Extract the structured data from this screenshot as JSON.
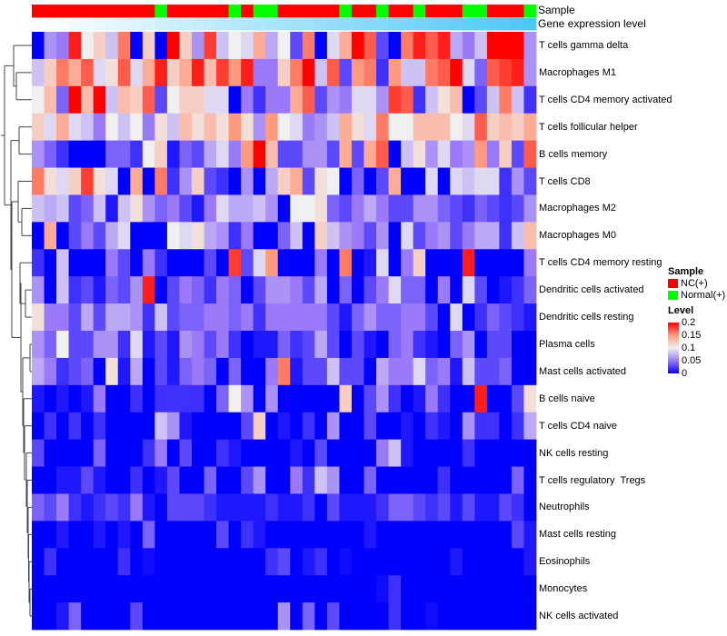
{
  "chart_data": {
    "type": "heatmap",
    "title": "",
    "annotations": {
      "sample_label": "Sample",
      "gene_label": "Gene expression level",
      "sample": [
        "NC(+)",
        "NC(+)",
        "NC(+)",
        "NC(+)",
        "NC(+)",
        "NC(+)",
        "NC(+)",
        "NC(+)",
        "NC(+)",
        "NC(+)",
        "Normal(+)",
        "NC(+)",
        "NC(+)",
        "NC(+)",
        "NC(+)",
        "NC(+)",
        "Normal(+)",
        "NC(+)",
        "Normal(+)",
        "Normal(+)",
        "NC(+)",
        "NC(+)",
        "NC(+)",
        "NC(+)",
        "NC(+)",
        "Normal(+)",
        "NC(+)",
        "NC(+)",
        "Normal(+)",
        "NC(+)",
        "NC(+)",
        "Normal(+)",
        "NC(+)",
        "NC(+)",
        "NC(+)",
        "Normal(+)",
        "Normal(+)",
        "NC(+)",
        "NC(+)",
        "NC(+)",
        "Normal(+)"
      ],
      "gene_expression_colors": {
        "low": "#ffffff",
        "high": "#4cc8f6"
      },
      "gene_expression_order": "increasing left to right"
    },
    "rows": [
      "T cells gamma delta",
      "Macrophages M1",
      "T cells CD4 memory activated",
      "T cells follicular helper",
      "B cells memory",
      "T cells CD8",
      "Macrophages M2",
      "Macrophages M0",
      "T cells CD4 memory resting",
      "Dendritic cells activated",
      "Dendritic cells resting",
      "Plasma cells",
      "Mast cells activated",
      "B cells naive",
      "T cells CD4 naive",
      "NK cells resting",
      "T cells regulatory  Tregs",
      "Neutrophils",
      "Mast cells resting",
      "Eosinophils",
      "Monocytes",
      "NK cells activated"
    ],
    "values": [
      [
        0,
        0.06,
        0.05,
        0.19,
        0.1,
        0.12,
        0.08,
        0.16,
        0,
        0.12,
        0,
        0.2,
        0.12,
        0.06,
        0.18,
        0.08,
        0.1,
        0.09,
        0.14,
        0.07,
        0.1,
        0.03,
        0.16,
        0,
        0.09,
        0.14,
        0.2,
        0.17,
        0.03,
        0,
        0.16,
        0.19,
        0.17,
        0.19,
        0.07,
        0.05,
        0.08,
        0.2,
        0.2,
        0.2,
        0.06
      ],
      [
        0.08,
        0.12,
        0.16,
        0.14,
        0.17,
        0.09,
        0.11,
        0.17,
        0.09,
        0.14,
        0.19,
        0.12,
        0.14,
        0.19,
        0.13,
        0.18,
        0.15,
        0.19,
        0.05,
        0.05,
        0.12,
        0.16,
        0.2,
        0.08,
        0.17,
        0.03,
        0.15,
        0.16,
        0.02,
        0.15,
        0.08,
        0.08,
        0.16,
        0.17,
        0.2,
        0.09,
        0.04,
        0.17,
        0.18,
        0.19,
        0.06
      ],
      [
        0.1,
        0.13,
        0.04,
        0.2,
        0.13,
        0.2,
        0.08,
        0.13,
        0.12,
        0.17,
        0.03,
        0.1,
        0.12,
        0.12,
        0.09,
        0.09,
        0,
        0.05,
        0.02,
        0.05,
        0.05,
        0.14,
        0.17,
        0.03,
        0.06,
        0.05,
        0.09,
        0.09,
        0.06,
        0.18,
        0.17,
        0.02,
        0.08,
        0.11,
        0.13,
        0,
        0.03,
        0.08,
        0.16,
        0.08,
        0.02
      ],
      [
        0.12,
        0.09,
        0.14,
        0.09,
        0.08,
        0.05,
        0.1,
        0.08,
        0.1,
        0.05,
        0.11,
        0.08,
        0.13,
        0.11,
        0.13,
        0.11,
        0.15,
        0.11,
        0.06,
        0.15,
        0.1,
        0.09,
        0.05,
        0.06,
        0.08,
        0.14,
        0.11,
        0.09,
        0.16,
        0.1,
        0.1,
        0.13,
        0.13,
        0.13,
        0.1,
        0.09,
        0.17,
        0.12,
        0.13,
        0.12,
        0.14
      ],
      [
        0.06,
        0.04,
        0.02,
        0,
        0,
        0,
        0.04,
        0.04,
        0.02,
        0.1,
        0.12,
        0.01,
        0.04,
        0.03,
        0.07,
        0.09,
        0.05,
        0.15,
        0.2,
        0.13,
        0.03,
        0.03,
        0.06,
        0.06,
        0.03,
        0.14,
        0.03,
        0.14,
        0.17,
        0,
        0.08,
        0.11,
        0.06,
        0.09,
        0.05,
        0.06,
        0.15,
        0.05,
        0.12,
        0.03,
        0.17
      ],
      [
        0.16,
        0.11,
        0.09,
        0.12,
        0.18,
        0.11,
        0.09,
        0,
        0.14,
        0,
        0.16,
        0.02,
        0.06,
        0.12,
        0.03,
        0.02,
        0,
        0.06,
        0,
        0.07,
        0.12,
        0.14,
        0.03,
        0.11,
        0.1,
        0,
        0.04,
        0,
        0.03,
        0.14,
        0,
        0,
        0.09,
        0,
        0.09,
        0.08,
        0.09,
        0.09,
        0.02,
        0.06,
        0.03
      ],
      [
        0.08,
        0.07,
        0.08,
        0.03,
        0.04,
        0.08,
        0.01,
        0.08,
        0.11,
        0.06,
        0.04,
        0.05,
        0.03,
        0.01,
        0.05,
        0.09,
        0.07,
        0.07,
        0.08,
        0.06,
        0,
        0.1,
        0.1,
        0.11,
        0.04,
        0.03,
        0.05,
        0.07,
        0.05,
        0.03,
        0.03,
        0.06,
        0.06,
        0.04,
        0.03,
        0.02,
        0.04,
        0.03,
        0.02,
        0.03,
        0.06
      ],
      [
        0,
        0.14,
        0,
        0.03,
        0.05,
        0.03,
        0.07,
        0.09,
        0,
        0,
        0,
        0.1,
        0.09,
        0.11,
        0.07,
        0.06,
        0.02,
        0.05,
        0,
        0,
        0.04,
        0.08,
        0,
        0.12,
        0.08,
        0.06,
        0.05,
        0.03,
        0.06,
        0,
        0.09,
        0.03,
        0.05,
        0.06,
        0.03,
        0.05,
        0.07,
        0.07,
        0.02,
        0.08,
        0.13
      ],
      [
        0.02,
        0,
        0.08,
        0,
        0,
        0,
        0.05,
        0.03,
        0,
        0.05,
        0.02,
        0,
        0,
        0,
        0.03,
        0,
        0.18,
        0.03,
        0.09,
        0.15,
        0,
        0,
        0,
        0.05,
        0,
        0.16,
        0,
        0.01,
        0.09,
        0,
        0.05,
        0.12,
        0,
        0,
        0,
        0.19,
        0,
        0,
        0,
        0,
        0.05
      ],
      [
        0.06,
        0,
        0.08,
        0.02,
        0.03,
        0.01,
        0.04,
        0.03,
        0.06,
        0.19,
        0,
        0.03,
        0.05,
        0.04,
        0.02,
        0.05,
        0.04,
        0,
        0.03,
        0.06,
        0.06,
        0.05,
        0.03,
        0.07,
        0,
        0.04,
        0,
        0.03,
        0.05,
        0.09,
        0.04,
        0.04,
        0,
        0.05,
        0,
        0.09,
        0.03,
        0,
        0.01,
        0.02,
        0.04
      ],
      [
        0.11,
        0.05,
        0.05,
        0.03,
        0.07,
        0.03,
        0.07,
        0.07,
        0.06,
        0.02,
        0.08,
        0.03,
        0.04,
        0.04,
        0.05,
        0.05,
        0.04,
        0.05,
        0.02,
        0.05,
        0.05,
        0.05,
        0.05,
        0.05,
        0.03,
        0.01,
        0.04,
        0.06,
        0.04,
        0.04,
        0.05,
        0.05,
        0.03,
        0,
        0.09,
        0,
        0.02,
        0.04,
        0.03,
        0.02,
        0.01
      ],
      [
        0.06,
        0.04,
        0.1,
        0.03,
        0.03,
        0.06,
        0.06,
        0.02,
        0.09,
        0.01,
        0.03,
        0.01,
        0.06,
        0.05,
        0.03,
        0.05,
        0.02,
        0,
        0.01,
        0.01,
        0.04,
        0.02,
        0.03,
        0.07,
        0.03,
        0,
        0.03,
        0.01,
        0,
        0.04,
        0.05,
        0.02,
        0.01,
        0,
        0.04,
        0.06,
        0,
        0.03,
        0.03,
        0,
        0
      ],
      [
        0.07,
        0.05,
        0.02,
        0.03,
        0.04,
        0,
        0.11,
        0.01,
        0.07,
        0,
        0.03,
        0.01,
        0.04,
        0.05,
        0.04,
        0,
        0.04,
        0,
        0,
        0.05,
        0.16,
        0.01,
        0.03,
        0.03,
        0.08,
        0.03,
        0.03,
        0,
        0.07,
        0.05,
        0.05,
        0.09,
        0.04,
        0.05,
        0.01,
        0.08,
        0.03,
        0.03,
        0.04,
        0,
        0
      ],
      [
        0.01,
        0,
        0.01,
        0,
        0.01,
        0.05,
        0,
        0,
        0.02,
        0,
        0.02,
        0.02,
        0.02,
        0.02,
        0,
        0.04,
        0.1,
        0.06,
        0,
        0.06,
        0,
        0,
        0,
        0,
        0,
        0.12,
        0,
        0.03,
        0.06,
        0.02,
        0,
        0.01,
        0.05,
        0.02,
        0,
        0,
        0.19,
        0,
        0,
        0.03,
        0.11
      ],
      [
        0,
        0.02,
        0,
        0.02,
        0,
        0.02,
        0,
        0,
        0,
        0,
        0.08,
        0.06,
        0.01,
        0,
        0,
        0,
        0,
        0.03,
        0.12,
        0,
        0.01,
        0,
        0.02,
        0,
        0.06,
        0,
        0,
        0.03,
        0,
        0,
        0.01,
        0,
        0.02,
        0.01,
        0,
        0.06,
        0.02,
        0.02,
        0,
        0.02,
        0.07
      ],
      [
        0.03,
        0,
        0,
        0,
        0,
        0.04,
        0,
        0,
        0,
        0.02,
        0.05,
        0,
        0.03,
        0,
        0,
        0.02,
        0.01,
        0,
        0,
        0,
        0,
        0.01,
        0,
        0.03,
        0,
        0,
        0,
        0,
        0.05,
        0.08,
        0.01,
        0,
        0,
        0,
        0,
        0.02,
        0,
        0,
        0,
        0,
        0
      ],
      [
        0,
        0,
        0.01,
        0.01,
        0.03,
        0.01,
        0,
        0,
        0.02,
        0,
        0.01,
        0.03,
        0,
        0,
        0.04,
        0,
        0,
        0.03,
        0.06,
        0,
        0,
        0.05,
        0.02,
        0.08,
        0.06,
        0,
        0,
        0.04,
        0,
        0,
        0,
        0,
        0,
        0.02,
        0,
        0,
        0,
        0,
        0,
        0.04,
        0
      ],
      [
        0.04,
        0.03,
        0.05,
        0.02,
        0.01,
        0.02,
        0.03,
        0.02,
        0.05,
        0.01,
        0,
        0.03,
        0.03,
        0.03,
        0.02,
        0.01,
        0.01,
        0.01,
        0.01,
        0.02,
        0.01,
        0.01,
        0.02,
        0,
        0.03,
        0.01,
        0.01,
        0.01,
        0.02,
        0.04,
        0.04,
        0.03,
        0.02,
        0.03,
        0.01,
        0.03,
        0.01,
        0.01,
        0.03,
        0.02,
        0
      ],
      [
        0,
        0,
        0.01,
        0,
        0,
        0.01,
        0,
        0.01,
        0,
        0.04,
        0,
        0,
        0,
        0,
        0,
        0.03,
        0,
        0.02,
        0.01,
        0,
        0,
        0,
        0,
        0,
        0,
        0,
        0,
        0.01,
        0,
        0,
        0,
        0,
        0,
        0,
        0,
        0,
        0,
        0,
        0,
        0.03,
        0.01
      ],
      [
        0,
        0.02,
        0,
        0,
        0,
        0,
        0,
        0.02,
        0,
        0.005,
        0,
        0,
        0,
        0,
        0,
        0,
        0,
        0,
        0,
        0.02,
        0.03,
        0,
        0.01,
        0.02,
        0,
        0.005,
        0,
        0,
        0,
        0,
        0,
        0,
        0,
        0,
        0.01,
        0,
        0,
        0,
        0,
        0,
        0.01
      ],
      [
        0,
        0,
        0,
        0,
        0,
        0,
        0,
        0,
        0,
        0,
        0,
        0,
        0,
        0,
        0,
        0,
        0,
        0,
        0,
        0,
        0,
        0,
        0,
        0,
        0,
        0,
        0,
        0,
        0.005,
        0.02,
        0,
        0,
        0,
        0,
        0,
        0,
        0,
        0,
        0,
        0,
        0
      ],
      [
        0,
        0,
        0.01,
        0.04,
        0,
        0,
        0,
        0,
        0.03,
        0,
        0,
        0,
        0,
        0,
        0,
        0,
        0,
        0,
        0,
        0,
        0.06,
        0,
        0.04,
        0,
        0.03,
        0,
        0,
        0,
        0,
        0.02,
        0,
        0,
        0.005,
        0,
        0,
        0,
        0,
        0,
        0,
        0,
        0
      ]
    ],
    "color_scale": {
      "min": 0,
      "mid": 0.1,
      "max": 0.2,
      "low": "#0000ff",
      "midColor": "#f0f0f0",
      "high": "#ff0000"
    },
    "legend": {
      "position": "right",
      "sample_title": "Sample",
      "sample_entries": [
        {
          "label": "NC(+)",
          "color": "#ff0000"
        },
        {
          "label": "Normal(+)",
          "color": "#00ff00"
        }
      ],
      "level_title": "Level",
      "level_ticks": [
        "0.2",
        "0.15",
        "0.1",
        "0.05",
        "0"
      ]
    },
    "row_dendrogram": true
  }
}
